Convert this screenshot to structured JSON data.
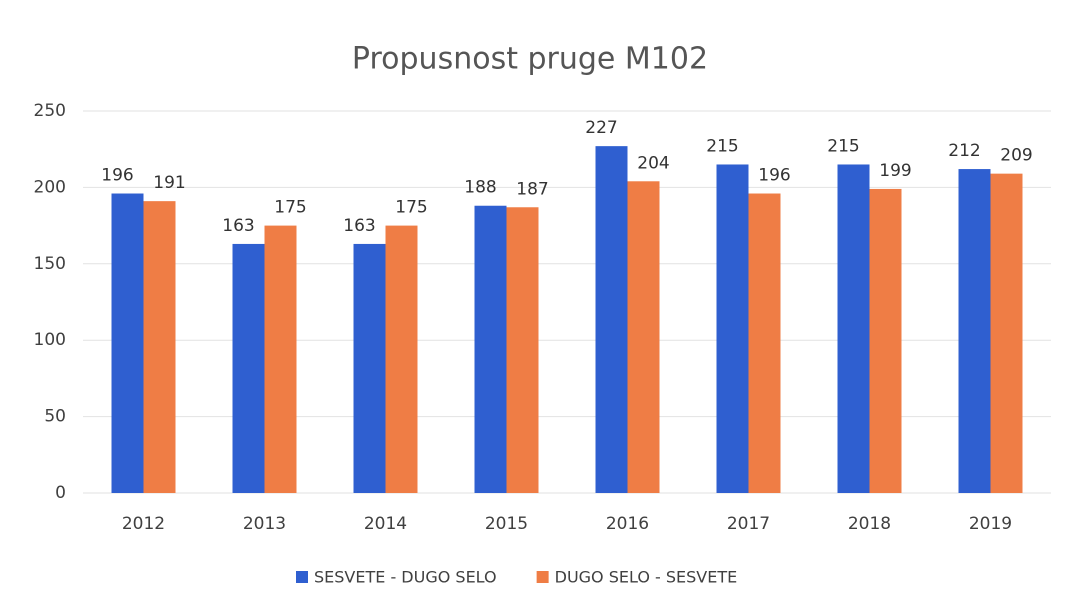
{
  "chart_data": {
    "type": "bar",
    "title": "Propusnost pruge M102",
    "categories": [
      "2012",
      "2013",
      "2014",
      "2015",
      "2016",
      "2017",
      "2018",
      "2019"
    ],
    "series": [
      {
        "name": "SESVETE - DUGO SELO",
        "color": "#2f5fd0",
        "values": [
          196,
          163,
          163,
          188,
          227,
          215,
          215,
          212
        ]
      },
      {
        "name": "DUGO SELO - SESVETE",
        "color": "#ef7d45",
        "values": [
          191,
          175,
          175,
          187,
          204,
          196,
          199,
          209
        ]
      }
    ],
    "ylim": [
      0,
      250
    ],
    "yticks": [
      0,
      50,
      100,
      150,
      200,
      250
    ],
    "grid": true,
    "legend": "bottom"
  }
}
